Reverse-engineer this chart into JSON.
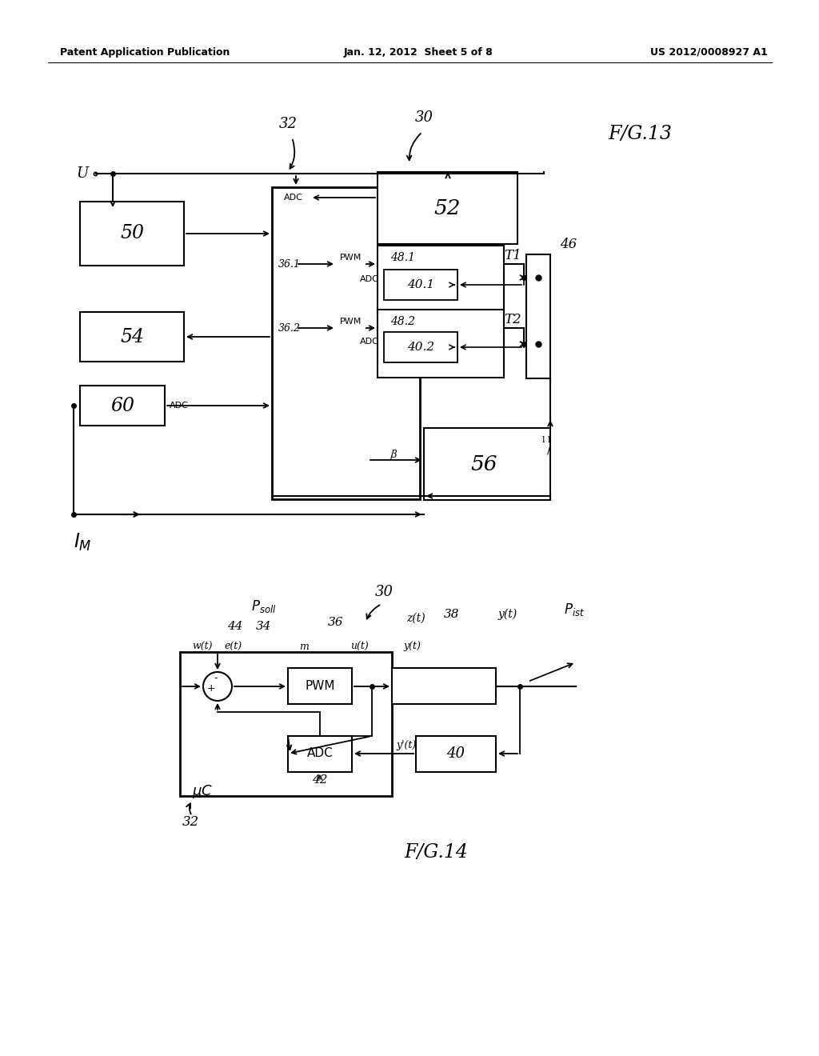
{
  "bg_color": "#ffffff",
  "header_left": "Patent Application Publication",
  "header_center": "Jan. 12, 2012  Sheet 5 of 8",
  "header_right": "US 2012/0008927 A1",
  "fig13_label": "F/G.13",
  "fig14_label": "F/G.14"
}
